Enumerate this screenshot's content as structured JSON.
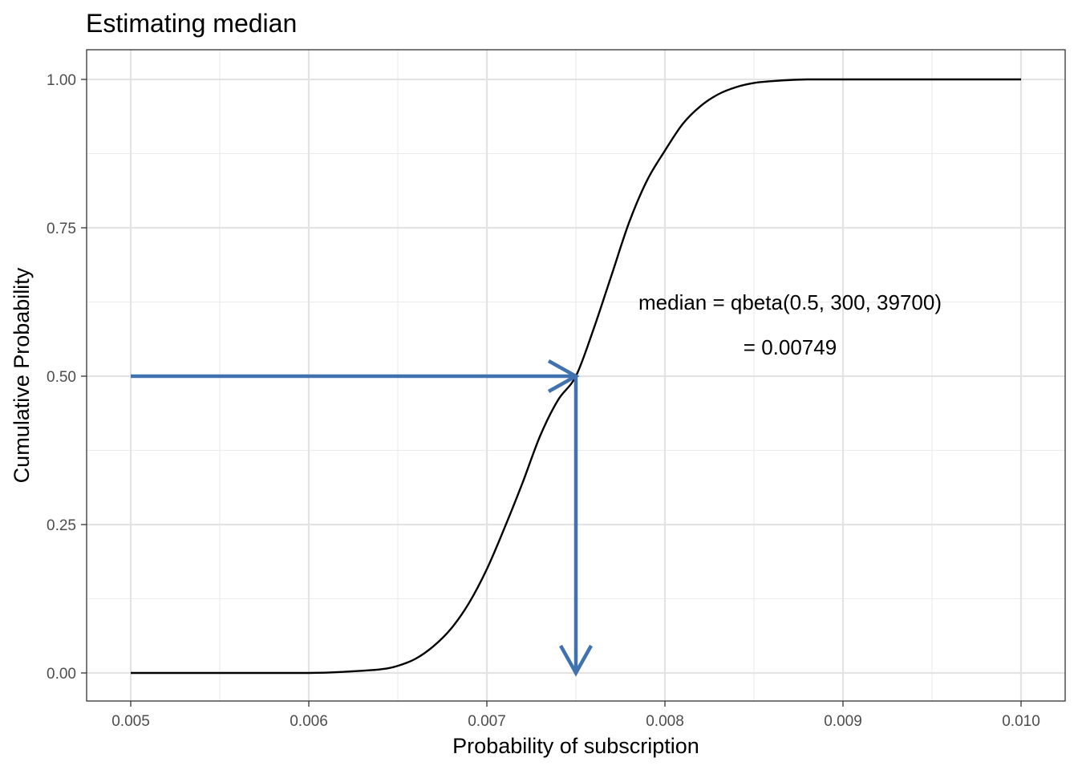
{
  "chart_data": {
    "type": "line",
    "title": "Estimating median",
    "xlabel": "Probability of subscription",
    "ylabel": "Cumulative Probability",
    "xlim": [
      0.005,
      0.01
    ],
    "ylim": [
      0.0,
      1.0
    ],
    "x_ticks": [
      "0.005",
      "0.006",
      "0.007",
      "0.008",
      "0.009",
      "0.010"
    ],
    "y_ticks": [
      "0.00",
      "0.25",
      "0.50",
      "0.75",
      "1.00"
    ],
    "grid": true,
    "series": [
      {
        "x": [
          0.005,
          0.0055,
          0.006,
          0.0062,
          0.0064,
          0.0065,
          0.0066,
          0.0067,
          0.0068,
          0.0069,
          0.007,
          0.0071,
          0.0072,
          0.0073,
          0.0074,
          0.0075,
          0.0076,
          0.0077,
          0.0078,
          0.0079,
          0.008,
          0.0081,
          0.0082,
          0.0083,
          0.0084,
          0.0085,
          0.0086,
          0.0087,
          0.0088,
          0.009,
          0.0095,
          0.01
        ],
        "y": [
          0.0,
          0.0,
          0.0,
          0.002,
          0.006,
          0.012,
          0.024,
          0.045,
          0.075,
          0.118,
          0.175,
          0.245,
          0.32,
          0.4,
          0.46,
          0.5,
          0.58,
          0.67,
          0.76,
          0.83,
          0.88,
          0.925,
          0.955,
          0.975,
          0.987,
          0.994,
          0.997,
          0.999,
          1.0,
          1.0,
          1.0,
          1.0
        ],
        "color": "#000000"
      }
    ],
    "annotations": {
      "line1": "median = qbeta(0.5, 300, 39700)",
      "line2": "= 0.00749",
      "median_x": 0.0075,
      "median_y": 0.5,
      "arrow_start_x": 0.005,
      "arrow_color": "#3f72af"
    }
  }
}
